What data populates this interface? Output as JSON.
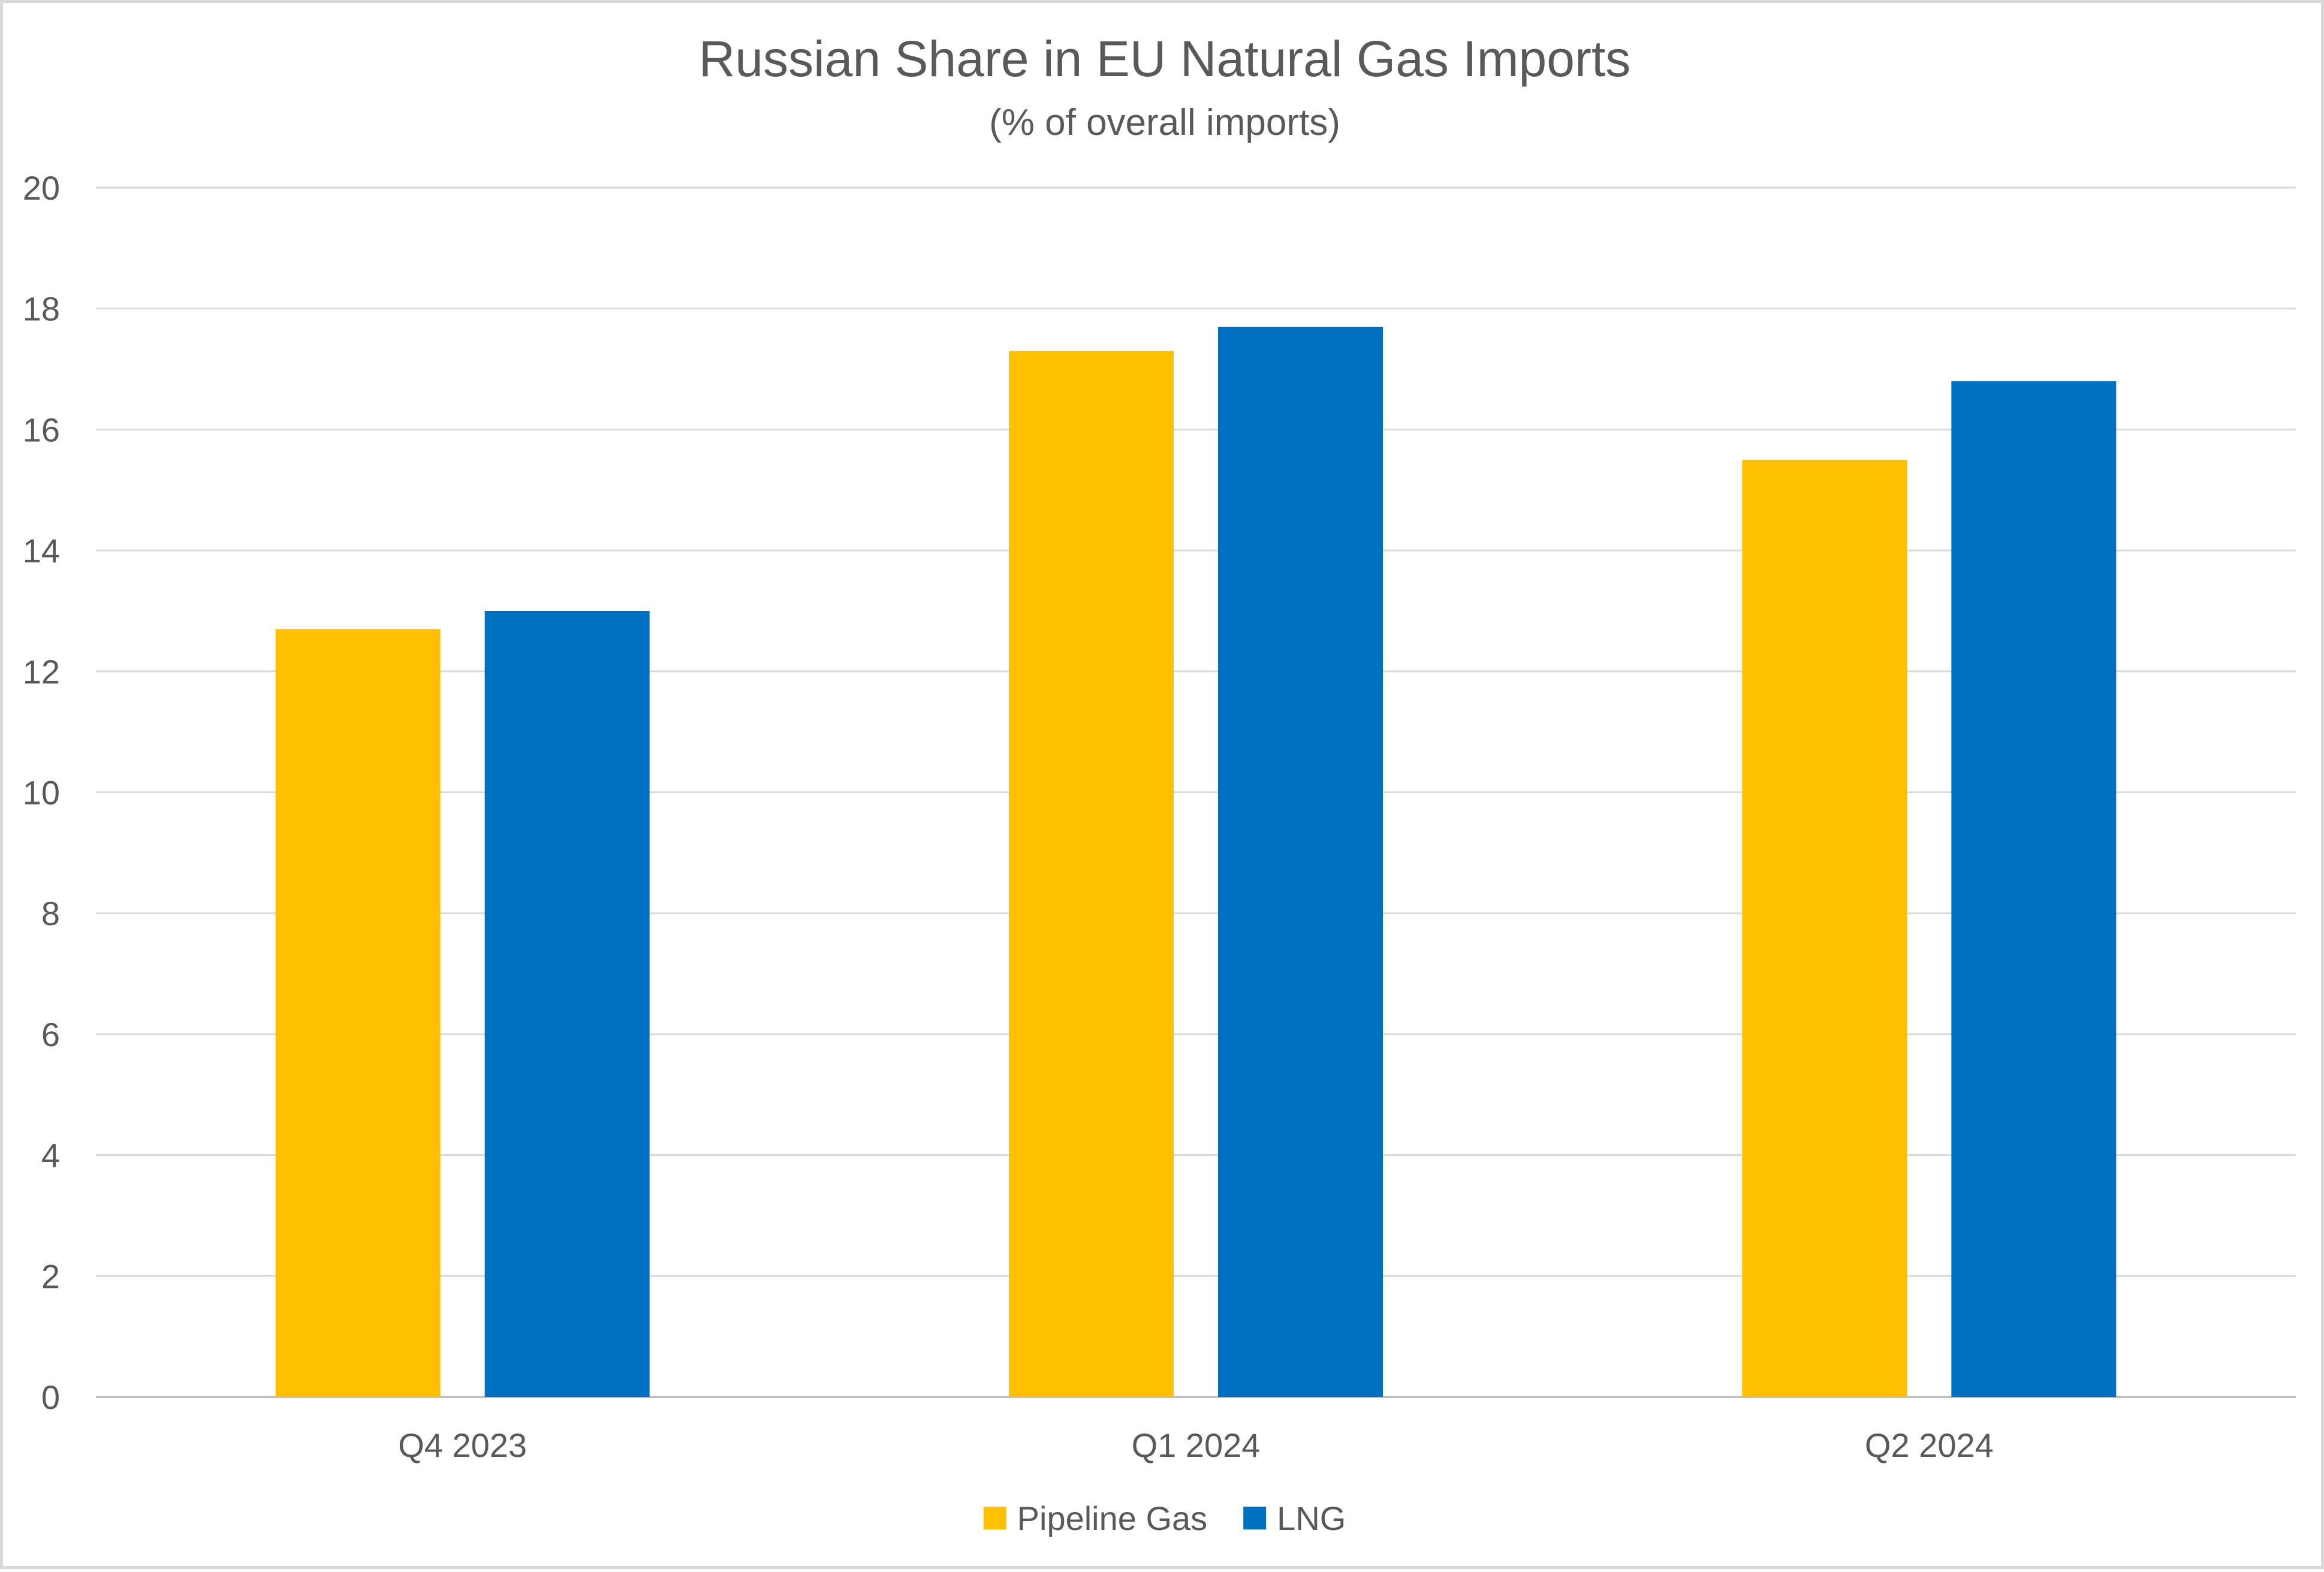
{
  "chart_data": {
    "type": "bar",
    "title": "Russian Share in EU Natural Gas Imports",
    "subtitle": "(% of overall imports)",
    "xlabel": "",
    "ylabel": "",
    "categories": [
      "Q4 2023",
      "Q1 2024",
      "Q2 2024"
    ],
    "series": [
      {
        "name": "Pipeline Gas",
        "values": [
          12.7,
          17.3,
          15.5
        ],
        "color": "#FFC000"
      },
      {
        "name": "LNG",
        "values": [
          13.0,
          17.7,
          16.8
        ],
        "color": "#0070C0"
      }
    ],
    "ylim": [
      0,
      20
    ],
    "yticks": [
      0,
      2,
      4,
      6,
      8,
      10,
      12,
      14,
      16,
      18,
      20
    ],
    "grid": true,
    "legend_position": "bottom"
  },
  "colors": {
    "gridline": "#d9d9d9",
    "axis": "#bfbfbf",
    "text": "#595959",
    "border": "#d9d9d9"
  }
}
